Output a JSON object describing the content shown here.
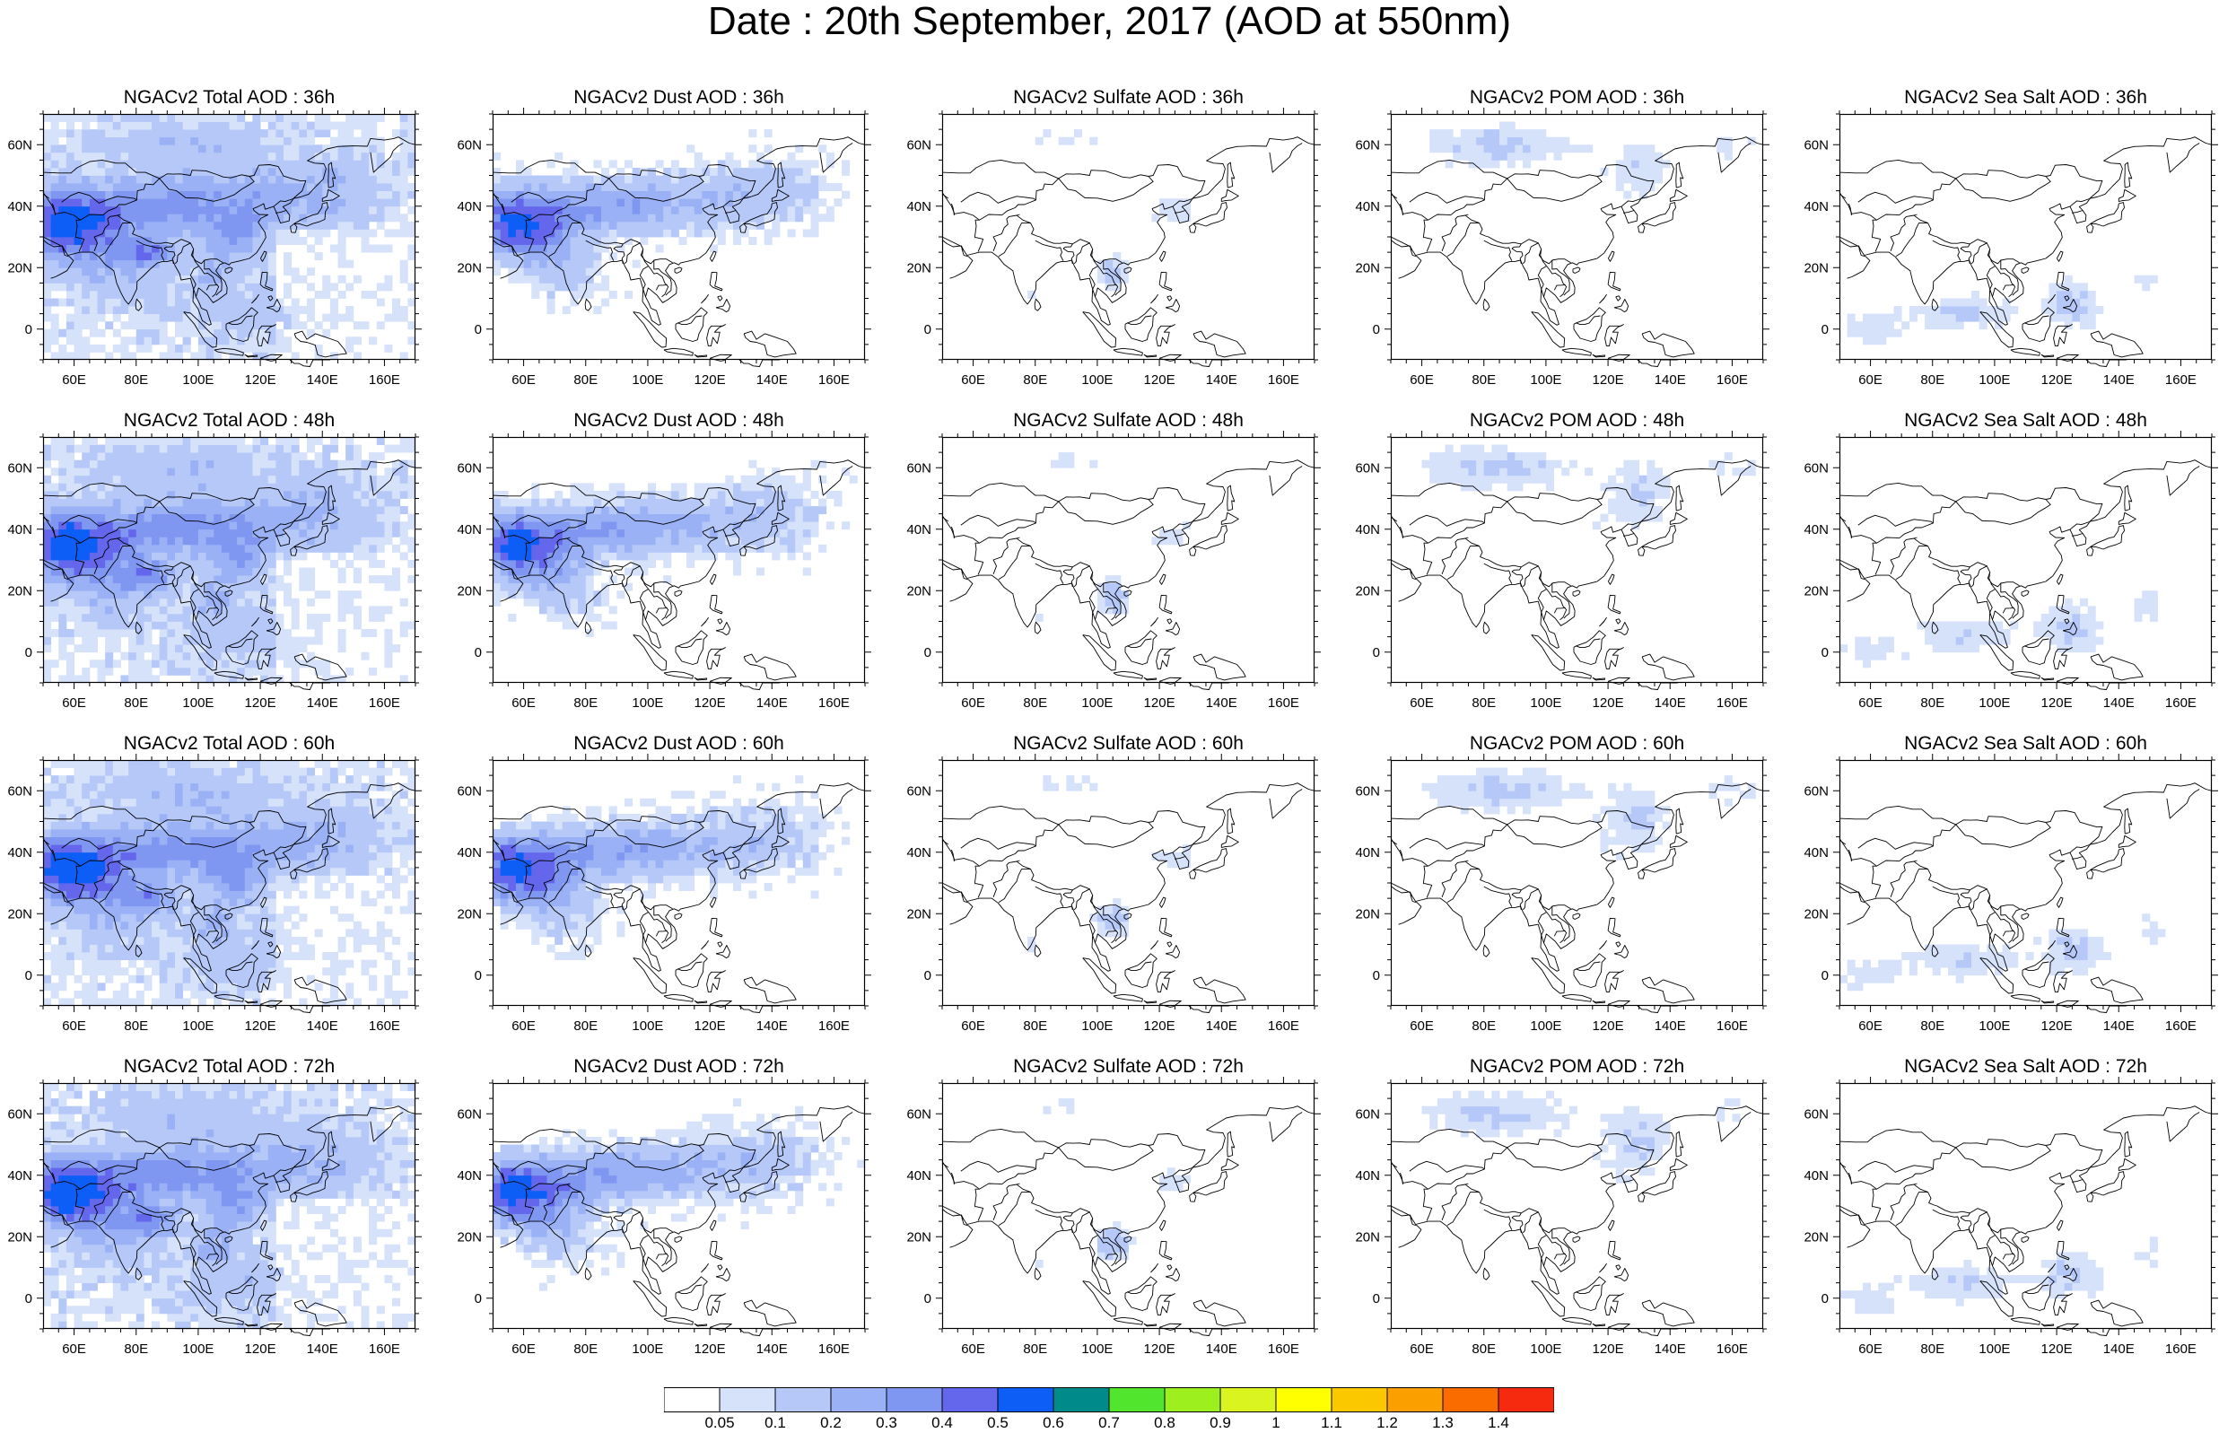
{
  "title": "Date : 20th September, 2017 (AOD at 550nm)",
  "map": {
    "projection": "cylindrical-equidistant",
    "lon_range": [
      50,
      170
    ],
    "lat_range": [
      -10,
      70
    ],
    "lon_ticks": [
      "60E",
      "80E",
      "100E",
      "120E",
      "140E",
      "160E"
    ],
    "lat_ticks": [
      "60N",
      "40N",
      "20N",
      "0"
    ],
    "coastline_color": "#000000"
  },
  "panels": [
    [
      {
        "title": "NGACv2 Total AOD : 36h",
        "variable": "total",
        "lead_hours": 36
      },
      {
        "title": "NGACv2 Dust AOD : 36h",
        "variable": "dust",
        "lead_hours": 36
      },
      {
        "title": "NGACv2 Sulfate AOD : 36h",
        "variable": "sulfate",
        "lead_hours": 36
      },
      {
        "title": "NGACv2 POM AOD : 36h",
        "variable": "pom",
        "lead_hours": 36
      },
      {
        "title": "NGACv2 Sea Salt AOD : 36h",
        "variable": "seasalt",
        "lead_hours": 36
      }
    ],
    [
      {
        "title": "NGACv2 Total AOD : 48h",
        "variable": "total",
        "lead_hours": 48
      },
      {
        "title": "NGACv2 Dust AOD : 48h",
        "variable": "dust",
        "lead_hours": 48
      },
      {
        "title": "NGACv2 Sulfate AOD : 48h",
        "variable": "sulfate",
        "lead_hours": 48
      },
      {
        "title": "NGACv2 POM AOD : 48h",
        "variable": "pom",
        "lead_hours": 48
      },
      {
        "title": "NGACv2 Sea Salt AOD : 48h",
        "variable": "seasalt",
        "lead_hours": 48
      }
    ],
    [
      {
        "title": "NGACv2 Total AOD : 60h",
        "variable": "total",
        "lead_hours": 60
      },
      {
        "title": "NGACv2 Dust AOD : 60h",
        "variable": "dust",
        "lead_hours": 60
      },
      {
        "title": "NGACv2 Sulfate AOD : 60h",
        "variable": "sulfate",
        "lead_hours": 60
      },
      {
        "title": "NGACv2 POM AOD : 60h",
        "variable": "pom",
        "lead_hours": 60
      },
      {
        "title": "NGACv2 Sea Salt AOD : 60h",
        "variable": "seasalt",
        "lead_hours": 60
      }
    ],
    [
      {
        "title": "NGACv2 Total AOD : 72h",
        "variable": "total",
        "lead_hours": 72
      },
      {
        "title": "NGACv2 Dust AOD : 72h",
        "variable": "dust",
        "lead_hours": 72
      },
      {
        "title": "NGACv2 Sulfate AOD : 72h",
        "variable": "sulfate",
        "lead_hours": 72
      },
      {
        "title": "NGACv2 POM AOD : 72h",
        "variable": "pom",
        "lead_hours": 72
      },
      {
        "title": "NGACv2 Sea Salt  AOD : 72h",
        "variable": "seasalt",
        "lead_hours": 72
      }
    ]
  ],
  "colorbar": {
    "colors": [
      "#ffffff",
      "#d6e1fa",
      "#b5c8f8",
      "#9ab1f6",
      "#8097f2",
      "#6467eb",
      "#0d5ef7",
      "#008b8b",
      "#52e52d",
      "#9eef1e",
      "#d9f41e",
      "#ffff00",
      "#fbc800",
      "#fb9e00",
      "#fa6b00",
      "#f62a0e"
    ],
    "labels": [
      "0.05",
      "0.1",
      "0.2",
      "0.3",
      "0.4",
      "0.5",
      "0.6",
      "0.7",
      "0.8",
      "0.9",
      "1",
      "1.1",
      "1.2",
      "1.3",
      "1.4"
    ]
  }
}
